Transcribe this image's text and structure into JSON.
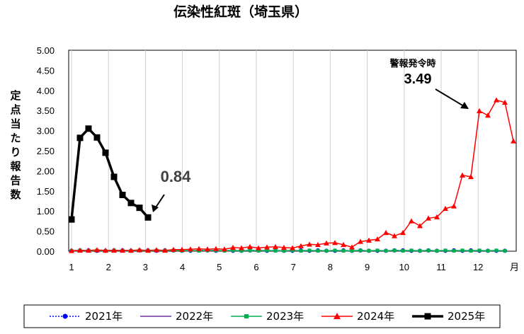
{
  "chart_data": {
    "type": "line",
    "title": "伝染性紅斑（埼玉県）",
    "ylabel": "定点当たり報告数",
    "xlabel": "月",
    "ylim": [
      0,
      5
    ],
    "yticks": [
      "0.00",
      "0.50",
      "1.00",
      "1.50",
      "2.00",
      "2.50",
      "3.00",
      "3.50",
      "4.00",
      "4.50",
      "5.00"
    ],
    "xticks": [
      "1",
      "2",
      "3",
      "4",
      "5",
      "6",
      "7",
      "8",
      "9",
      "10",
      "11",
      "12"
    ],
    "x_unit_label": "月",
    "grid": "vertical",
    "legend_position": "bottom",
    "annotations": [
      {
        "id": "alert",
        "label": "警報発令時",
        "value": "3.49"
      },
      {
        "id": "latest",
        "value": "0.84"
      }
    ],
    "series": [
      {
        "name": "2021年",
        "color": "#0000ff",
        "style": "dotted",
        "marker": "circle",
        "values": [
          0.01,
          0.02,
          0.02,
          0.01,
          0.01,
          0.02,
          0.02,
          0.01,
          0.02,
          0.02,
          0.01,
          0.02,
          0.02,
          0.01,
          0.01,
          0.02,
          0.02,
          0.01,
          0.02,
          0.01,
          0.01,
          0.02,
          0.02,
          0.01,
          0.02,
          0.01,
          0.01,
          0.02,
          0.01,
          0.02,
          0.01,
          0.01,
          0.02,
          0.01,
          0.02,
          0.01,
          0.01,
          0.01,
          0.02,
          0.02,
          0.01,
          0.01,
          0.02,
          0.01,
          0.01,
          0.02,
          0.01,
          0.02,
          0.01,
          0.01,
          0.01,
          0.01
        ]
      },
      {
        "name": "2022年",
        "color": "#7030a0",
        "style": "solid",
        "marker": "none",
        "values": [
          0.01,
          0.01,
          0.01,
          0.01,
          0.01,
          0.01,
          0.01,
          0.01,
          0.01,
          0.01,
          0.01,
          0.01,
          0.01,
          0.01,
          0.01,
          0.01,
          0.01,
          0.01,
          0.01,
          0.01,
          0.01,
          0.01,
          0.01,
          0.01,
          0.01,
          0.01,
          0.01,
          0.01,
          0.01,
          0.01,
          0.01,
          0.01,
          0.01,
          0.01,
          0.01,
          0.01,
          0.01,
          0.01,
          0.01,
          0.01,
          0.01,
          0.01,
          0.01,
          0.01,
          0.01,
          0.01,
          0.01,
          0.01,
          0.01,
          0.01,
          0.01,
          0.01
        ]
      },
      {
        "name": "2023年",
        "color": "#00b050",
        "style": "solid",
        "marker": "square",
        "values": [
          0.01,
          0.02,
          0.01,
          0.02,
          0.01,
          0.02,
          0.01,
          0.01,
          0.02,
          0.01,
          0.02,
          0.01,
          0.02,
          0.01,
          0.02,
          0.01,
          0.02,
          0.02,
          0.01,
          0.02,
          0.01,
          0.02,
          0.01,
          0.02,
          0.01,
          0.01,
          0.02,
          0.01,
          0.02,
          0.01,
          0.01,
          0.02,
          0.01,
          0.01,
          0.02,
          0.01,
          0.02,
          0.01,
          0.02,
          0.01,
          0.02,
          0.01,
          0.02,
          0.01,
          0.02,
          0.01,
          0.02,
          0.01,
          0.02,
          0.01,
          0.02,
          0.01
        ]
      },
      {
        "name": "2024年",
        "color": "#ff0000",
        "style": "solid",
        "marker": "triangle",
        "values": [
          0.01,
          0.02,
          0.02,
          0.03,
          0.02,
          0.02,
          0.02,
          0.02,
          0.03,
          0.02,
          0.03,
          0.02,
          0.04,
          0.04,
          0.05,
          0.06,
          0.05,
          0.06,
          0.05,
          0.09,
          0.08,
          0.11,
          0.08,
          0.1,
          0.11,
          0.09,
          0.08,
          0.13,
          0.17,
          0.16,
          0.2,
          0.21,
          0.16,
          0.1,
          0.24,
          0.27,
          0.3,
          0.46,
          0.38,
          0.46,
          0.75,
          0.63,
          0.82,
          0.85,
          1.06,
          1.12,
          1.89,
          1.85,
          3.49,
          3.38,
          3.76,
          3.7,
          2.74
        ]
      },
      {
        "name": "2025年",
        "color": "#000000",
        "style": "solid-thick",
        "marker": "square",
        "values": [
          0.79,
          2.82,
          3.05,
          2.83,
          2.45,
          1.85,
          1.4,
          1.2,
          1.08,
          0.84
        ]
      }
    ]
  },
  "legend": {
    "items": [
      "2021年",
      "2022年",
      "2023年",
      "2024年",
      "2025年"
    ]
  }
}
